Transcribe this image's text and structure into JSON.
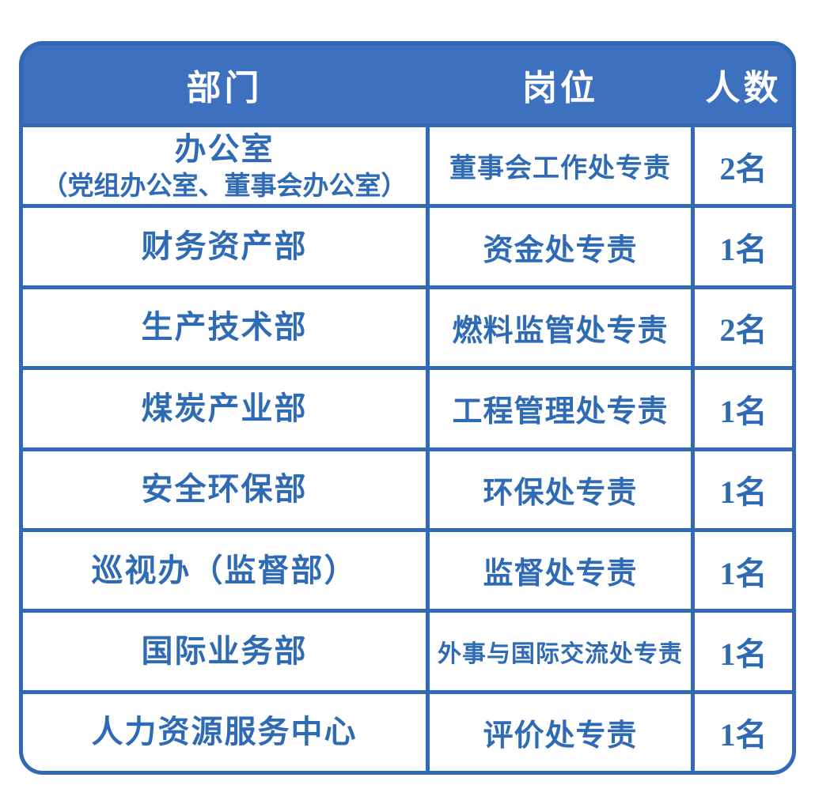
{
  "colors": {
    "header_bg": "#3D70BE",
    "header_text": "#FFFFFF",
    "border": "#3269B4",
    "cell_bg": "#FFFFFF",
    "text": "#2F6BB4",
    "page_bg": "#FFFFFF"
  },
  "chart_data": {
    "type": "table",
    "columns": [
      "部门",
      "岗位",
      "人数"
    ],
    "rows": [
      {
        "department": "办公室",
        "department_sub": "（党组办公室、董事会办公室）",
        "position": "董事会工作处专责",
        "count": "2名"
      },
      {
        "department": "财务资产部",
        "department_sub": "",
        "position": "资金处专责",
        "count": "1名"
      },
      {
        "department": "生产技术部",
        "department_sub": "",
        "position": "燃料监管处专责",
        "count": "2名"
      },
      {
        "department": "煤炭产业部",
        "department_sub": "",
        "position": "工程管理处专责",
        "count": "1名"
      },
      {
        "department": "安全环保部",
        "department_sub": "",
        "position": "环保处专责",
        "count": "1名"
      },
      {
        "department": "巡视办（监督部）",
        "department_sub": "",
        "position": "监督处专责",
        "count": "1名"
      },
      {
        "department": "国际业务部",
        "department_sub": "",
        "position": "外事与国际交流处专责",
        "count": "1名"
      },
      {
        "department": "人力资源服务中心",
        "department_sub": "",
        "position": "评价处专责",
        "count": "1名"
      }
    ]
  }
}
